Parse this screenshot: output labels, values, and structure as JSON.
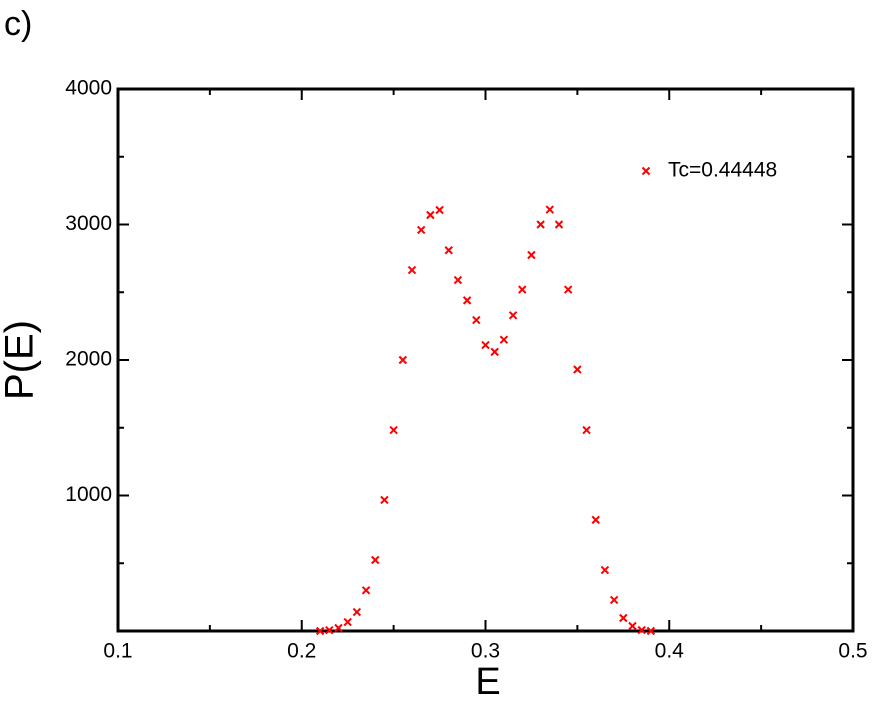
{
  "chart_data": {
    "type": "scatter",
    "panel_label": "c)",
    "x_label": "E",
    "y_label": "P(E)",
    "xlim": [
      0.1,
      0.5
    ],
    "ylim": [
      0,
      4000
    ],
    "xticks": [
      0.1,
      0.2,
      0.3,
      0.4,
      0.5
    ],
    "yticks": [
      1000,
      2000,
      3000,
      4000
    ],
    "xminorticks": [
      0.15,
      0.25,
      0.35,
      0.45
    ],
    "yminorticks": [
      500,
      1500,
      2500,
      3500
    ],
    "legend": "upper right",
    "series": [
      {
        "name": "Tc=0.44448",
        "color": "#ff0000",
        "x": [
          0.21,
          0.215,
          0.22,
          0.225,
          0.23,
          0.235,
          0.24,
          0.245,
          0.25,
          0.255,
          0.26,
          0.265,
          0.27,
          0.275,
          0.28,
          0.285,
          0.29,
          0.295,
          0.3,
          0.305,
          0.31,
          0.315,
          0.32,
          0.325,
          0.33,
          0.335,
          0.34,
          0.345,
          0.35,
          0.355,
          0.36,
          0.365,
          0.37,
          0.375,
          0.38,
          0.385,
          0.39
        ],
        "values": [
          0,
          6,
          22,
          66,
          140,
          300,
          524,
          967,
          1483,
          2000,
          2664,
          2960,
          3070,
          3107,
          2810,
          2590,
          2440,
          2295,
          2110,
          2060,
          2150,
          2330,
          2520,
          2775,
          3000,
          3110,
          3000,
          2520,
          1930,
          1483,
          820,
          450,
          229,
          96,
          37,
          7,
          0
        ]
      }
    ]
  }
}
